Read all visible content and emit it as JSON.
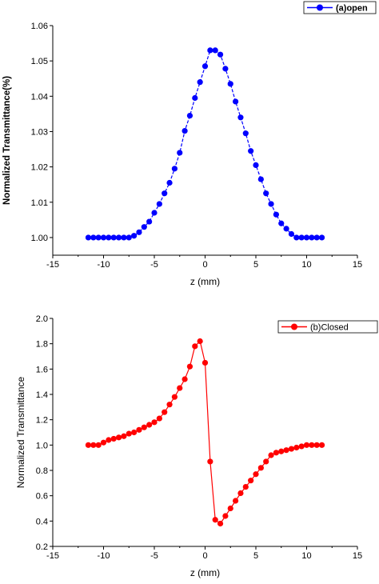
{
  "chart_data": [
    {
      "type": "line",
      "legend": "(a)open",
      "legend_placement": "top-right",
      "xlabel": "z (mm)",
      "ylabel": "Normalized Transmittance(%)",
      "xlim": [
        -15,
        15
      ],
      "ylim": [
        0.995,
        1.06
      ],
      "xticks": [
        "-15",
        "-10",
        "-5",
        "0",
        "5",
        "10",
        "15"
      ],
      "yticks": [
        "1.00",
        "1.01",
        "1.02",
        "1.03",
        "1.04",
        "1.05",
        "1.06"
      ],
      "ytick_values": [
        1.0,
        1.01,
        1.02,
        1.03,
        1.04,
        1.05,
        1.06
      ],
      "grid": false,
      "color": "#0000ff",
      "line_style": "dashed",
      "series": [
        {
          "name": "(a)open",
          "x": [
            -11.5,
            -11.0,
            -10.5,
            -10.0,
            -9.5,
            -9.0,
            -8.5,
            -8.0,
            -7.5,
            -7.0,
            -6.5,
            -6.0,
            -5.5,
            -5.0,
            -4.5,
            -4.0,
            -3.5,
            -3.0,
            -2.5,
            -2.0,
            -1.5,
            -1.0,
            -0.5,
            0.0,
            0.5,
            1.0,
            1.5,
            2.0,
            2.5,
            3.0,
            3.5,
            4.0,
            4.5,
            5.0,
            5.5,
            6.0,
            6.5,
            7.0,
            7.5,
            8.0,
            8.5,
            9.0,
            9.5,
            10.0,
            10.5,
            11.0,
            11.5
          ],
          "y": [
            1.0,
            1.0,
            1.0,
            1.0,
            1.0,
            1.0,
            1.0,
            1.0,
            1.0,
            1.0005,
            1.0015,
            1.003,
            1.0045,
            1.007,
            1.0095,
            1.0125,
            1.0155,
            1.0195,
            1.024,
            1.0302,
            1.0345,
            1.0395,
            1.044,
            1.0485,
            1.053,
            1.053,
            1.0518,
            1.0478,
            1.0435,
            1.0385,
            1.034,
            1.0295,
            1.0245,
            1.0205,
            1.0165,
            1.0125,
            1.0095,
            1.0065,
            1.004,
            1.0025,
            1.001,
            1.0,
            1.0,
            1.0,
            1.0,
            1.0,
            1.0
          ]
        }
      ]
    },
    {
      "type": "line",
      "legend": "(b)Closed",
      "legend_placement": "top-right",
      "xlabel": "z (mm)",
      "ylabel": "Normalized Transmittance",
      "xlim": [
        -15,
        15
      ],
      "ylim": [
        0.2,
        2.0
      ],
      "xticks": [
        "-15",
        "-10",
        "-5",
        "0",
        "5",
        "10",
        "15"
      ],
      "yticks": [
        "0.2",
        "0.4",
        "0.6",
        "0.8",
        "1.0",
        "1.2",
        "1.4",
        "1.6",
        "1.8",
        "2.0"
      ],
      "ytick_values": [
        0.2,
        0.4,
        0.6,
        0.8,
        1.0,
        1.2,
        1.4,
        1.6,
        1.8,
        2.0
      ],
      "grid": false,
      "color": "#ff0000",
      "line_style": "solid",
      "series": [
        {
          "name": "(b)Closed",
          "x": [
            -11.5,
            -11.0,
            -10.5,
            -10.0,
            -9.5,
            -9.0,
            -8.5,
            -8.0,
            -7.5,
            -7.0,
            -6.5,
            -6.0,
            -5.5,
            -5.0,
            -4.5,
            -4.0,
            -3.5,
            -3.0,
            -2.5,
            -2.0,
            -1.5,
            -1.0,
            -0.5,
            0.0,
            0.5,
            1.0,
            1.5,
            2.0,
            2.5,
            3.0,
            3.5,
            4.0,
            4.5,
            5.0,
            5.5,
            6.0,
            6.5,
            7.0,
            7.5,
            8.0,
            8.5,
            9.0,
            9.5,
            10.0,
            10.5,
            11.0,
            11.5
          ],
          "y": [
            1.0,
            1.0,
            1.0,
            1.02,
            1.04,
            1.05,
            1.06,
            1.07,
            1.09,
            1.1,
            1.12,
            1.14,
            1.16,
            1.18,
            1.21,
            1.26,
            1.32,
            1.38,
            1.45,
            1.52,
            1.62,
            1.78,
            1.82,
            1.65,
            0.87,
            0.41,
            0.38,
            0.44,
            0.5,
            0.56,
            0.62,
            0.67,
            0.72,
            0.77,
            0.82,
            0.87,
            0.92,
            0.94,
            0.95,
            0.96,
            0.97,
            0.98,
            0.99,
            1.0,
            1.0,
            1.0,
            1.0
          ]
        }
      ]
    }
  ]
}
